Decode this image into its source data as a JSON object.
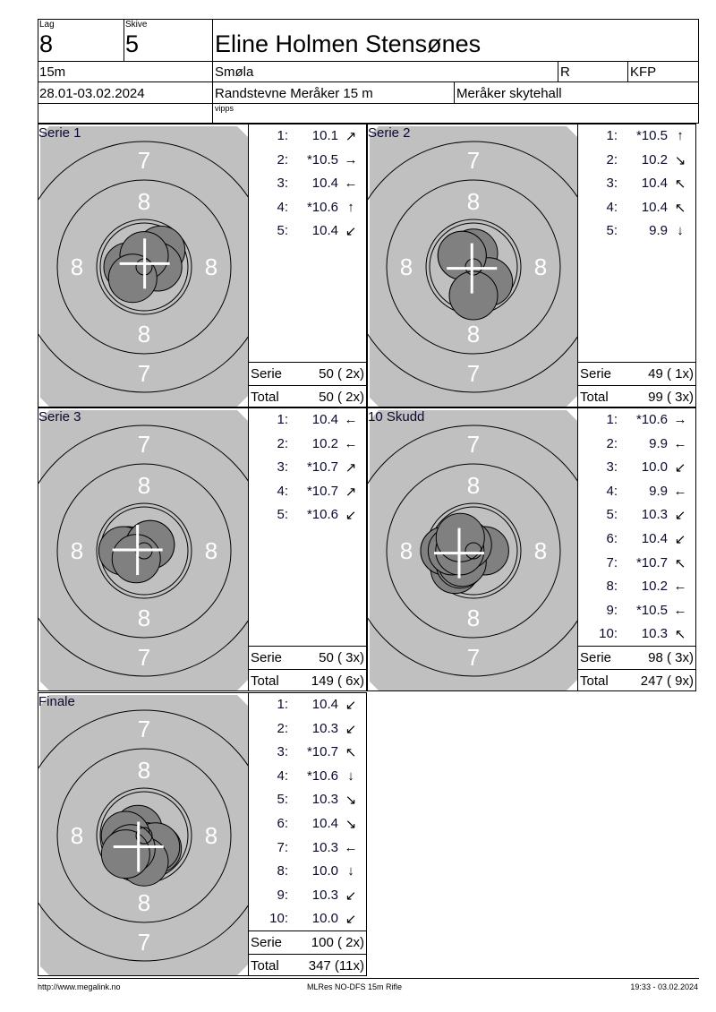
{
  "header": {
    "lag_label": "Lag",
    "lag": "8",
    "skive_label": "Skive",
    "skive": "5",
    "name": "Eline Holmen Stensønes",
    "distance": "15m",
    "club": "Smøla",
    "class_code": "R",
    "group": "KFP",
    "date": "28.01-03.02.2024",
    "event": "Randstevne Meråker 15 m",
    "venue": "Meråker skytehall",
    "sponsor": "vipps"
  },
  "series": [
    {
      "title": "Serie 1",
      "shots": [
        {
          "n": "1:",
          "v": "10.1",
          "dir": "up-right"
        },
        {
          "n": "2:",
          "v": "*10.5",
          "dir": "right"
        },
        {
          "n": "3:",
          "v": "10.4",
          "dir": "left"
        },
        {
          "n": "4:",
          "v": "*10.6",
          "dir": "up"
        },
        {
          "n": "5:",
          "v": "10.4",
          "dir": "down-left"
        }
      ],
      "serie_label": "Serie",
      "serie": "50 ( 2x)",
      "total_label": "Total",
      "total": "50 ( 2x)"
    },
    {
      "title": "Serie 2",
      "shots": [
        {
          "n": "1:",
          "v": "*10.5",
          "dir": "up"
        },
        {
          "n": "2:",
          "v": "10.2",
          "dir": "down-right"
        },
        {
          "n": "3:",
          "v": "10.4",
          "dir": "up-left"
        },
        {
          "n": "4:",
          "v": "10.4",
          "dir": "up-left"
        },
        {
          "n": "5:",
          "v": "9.9",
          "dir": "down"
        }
      ],
      "serie_label": "Serie",
      "serie": "49 ( 1x)",
      "total_label": "Total",
      "total": "99 ( 3x)"
    },
    {
      "title": "Serie 3",
      "shots": [
        {
          "n": "1:",
          "v": "10.4",
          "dir": "left"
        },
        {
          "n": "2:",
          "v": "10.2",
          "dir": "left"
        },
        {
          "n": "3:",
          "v": "*10.7",
          "dir": "up-right"
        },
        {
          "n": "4:",
          "v": "*10.7",
          "dir": "up-right"
        },
        {
          "n": "5:",
          "v": "*10.6",
          "dir": "down-left"
        }
      ],
      "serie_label": "Serie",
      "serie": "50 ( 3x)",
      "total_label": "Total",
      "total": "149 ( 6x)"
    },
    {
      "title": "10 Skudd",
      "shots": [
        {
          "n": "1:",
          "v": "*10.6",
          "dir": "right"
        },
        {
          "n": "2:",
          "v": "9.9",
          "dir": "left"
        },
        {
          "n": "3:",
          "v": "10.0",
          "dir": "down-left"
        },
        {
          "n": "4:",
          "v": "9.9",
          "dir": "left"
        },
        {
          "n": "5:",
          "v": "10.3",
          "dir": "down-left"
        },
        {
          "n": "6:",
          "v": "10.4",
          "dir": "down-left"
        },
        {
          "n": "7:",
          "v": "*10.7",
          "dir": "up-left"
        },
        {
          "n": "8:",
          "v": "10.2",
          "dir": "left"
        },
        {
          "n": "9:",
          "v": "*10.5",
          "dir": "left"
        },
        {
          "n": "10:",
          "v": "10.3",
          "dir": "up-left"
        }
      ],
      "serie_label": "Serie",
      "serie": "98 ( 3x)",
      "total_label": "Total",
      "total": "247 ( 9x)"
    },
    {
      "title": "Finale",
      "shots": [
        {
          "n": "1:",
          "v": "10.4",
          "dir": "down-left"
        },
        {
          "n": "2:",
          "v": "10.3",
          "dir": "down-left"
        },
        {
          "n": "3:",
          "v": "*10.7",
          "dir": "up-left"
        },
        {
          "n": "4:",
          "v": "*10.6",
          "dir": "down"
        },
        {
          "n": "5:",
          "v": "10.3",
          "dir": "down-right"
        },
        {
          "n": "6:",
          "v": "10.4",
          "dir": "down-right"
        },
        {
          "n": "7:",
          "v": "10.3",
          "dir": "left"
        },
        {
          "n": "8:",
          "v": "10.0",
          "dir": "down"
        },
        {
          "n": "9:",
          "v": "10.3",
          "dir": "down-left"
        },
        {
          "n": "10:",
          "v": "10.0",
          "dir": "down-left"
        }
      ],
      "serie_label": "Serie",
      "serie": "100 ( 2x)",
      "total_label": "Total",
      "total": "347 (11x)"
    }
  ],
  "ring_labels": {
    "outer": "7",
    "inner": "8"
  },
  "colors": {
    "target_bg": "#c0c0c0",
    "shot": "#808080",
    "cross": "#ffffff",
    "ring_label": "#ffffff"
  },
  "footer": {
    "left": "http://www.megalink.no",
    "center": "MLRes NO-DFS 15m Rifle",
    "right": "19:33 - 03.02.2024"
  }
}
